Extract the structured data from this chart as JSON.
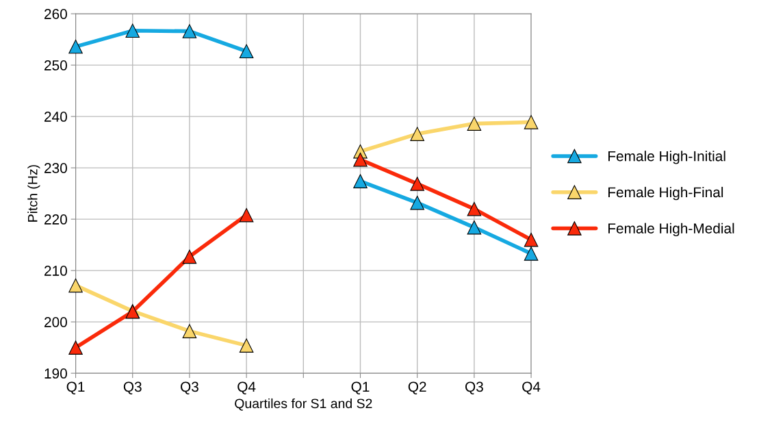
{
  "chart_data": {
    "type": "line",
    "xlabel": "Quartiles for S1 and S2",
    "ylabel": "Pitch (Hz)",
    "categories": [
      "Q1",
      "Q3",
      "Q3",
      "Q4",
      null,
      "Q1",
      "Q2",
      "Q3",
      "Q4"
    ],
    "series": [
      {
        "name": "Female High-Initial",
        "color": "#16a9e1",
        "values": [
          253.6,
          256.7,
          256.6,
          252.7,
          null,
          227.4,
          223.2,
          218.4,
          213.3
        ]
      },
      {
        "name": "Female High-Final",
        "color": "#fad66b",
        "values": [
          207.1,
          202.1,
          198.2,
          195.4,
          null,
          233.2,
          236.6,
          238.6,
          238.9
        ]
      },
      {
        "name": "Female High-Medial",
        "color": "#fa2a0a",
        "values": [
          195.0,
          202.0,
          212.7,
          220.8,
          null,
          231.6,
          226.9,
          222.0,
          216.0
        ]
      }
    ],
    "ylim": [
      190,
      260
    ],
    "yticks": [
      190,
      200,
      210,
      220,
      230,
      240,
      250,
      260
    ],
    "grid": true,
    "legend": "right",
    "marker": "triangle",
    "line_style": "solid"
  }
}
